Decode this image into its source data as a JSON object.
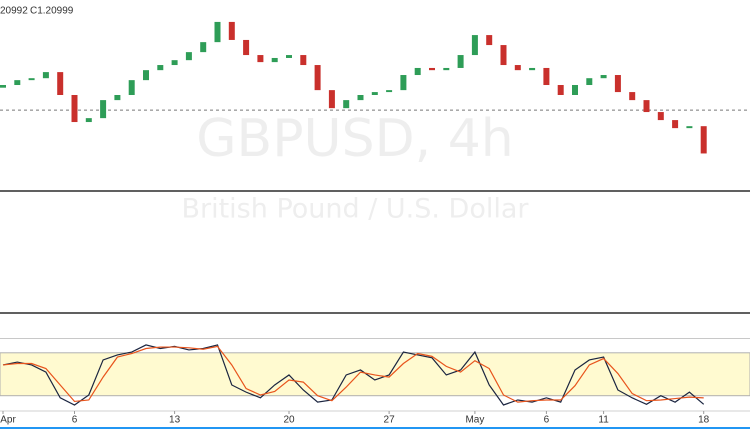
{
  "chart_data": [
    {
      "type": "candlestick",
      "legend_texts": [
        "20992",
        "C1.20999"
      ],
      "watermark_symbol": "GBPUSD, 4h",
      "watermark_name": "British Pound / U.S. Dollar",
      "categories": [
        "Apr",
        null,
        null,
        null,
        null,
        "6",
        null,
        null,
        null,
        null,
        null,
        null,
        "13",
        null,
        null,
        null,
        null,
        null,
        null,
        null,
        "20",
        null,
        null,
        null,
        null,
        null,
        null,
        "27",
        null,
        null,
        null,
        null,
        null,
        "May",
        null,
        null,
        null,
        null,
        "6",
        null,
        null,
        null,
        "11",
        null,
        null,
        null,
        null,
        null,
        null,
        "18"
      ],
      "open": [
        1.237,
        1.2381,
        1.2401,
        1.2409,
        1.2434,
        1.234,
        1.2229,
        1.2245,
        1.2319,
        1.234,
        1.2401,
        1.2442,
        1.2463,
        1.2483,
        1.2516,
        1.2557,
        1.264,
        1.2566,
        1.2504,
        1.2475,
        1.2492,
        1.2504,
        1.2463,
        1.236,
        1.2286,
        1.2319,
        1.234,
        1.2352,
        1.236,
        1.2422,
        1.2451,
        1.2442,
        1.2451,
        1.2504,
        1.2586,
        1.2545,
        1.2463,
        1.2442,
        1.2451,
        1.2381,
        1.234,
        1.2381,
        1.2409,
        1.2422,
        1.2352,
        1.2319,
        1.227,
        1.2237,
        1.2204,
        1.2212
      ],
      "close": [
        1.2381,
        1.2401,
        1.2409,
        1.2434,
        1.234,
        1.2229,
        1.2245,
        1.2319,
        1.234,
        1.2401,
        1.2442,
        1.2463,
        1.2483,
        1.2516,
        1.2557,
        1.264,
        1.2566,
        1.2504,
        1.2475,
        1.2492,
        1.2504,
        1.2463,
        1.236,
        1.2286,
        1.2319,
        1.234,
        1.2352,
        1.236,
        1.2422,
        1.2451,
        1.2442,
        1.2451,
        1.2504,
        1.2586,
        1.2545,
        1.2463,
        1.2442,
        1.2451,
        1.2381,
        1.234,
        1.2381,
        1.2409,
        1.2422,
        1.2352,
        1.2319,
        1.227,
        1.2237,
        1.2204,
        1.2212,
        1.21
      ],
      "up_color": "#2e9d57",
      "down_color": "#c9302c",
      "price_line": 1.2278,
      "ylim": [
        1.195,
        1.273
      ]
    },
    {
      "type": "stochastic",
      "series": [
        {
          "color": "#1b2540",
          "values": [
            63,
            67,
            63,
            53,
            17,
            7,
            21,
            70,
            77,
            81,
            91,
            86,
            89,
            84,
            86,
            91,
            35,
            25,
            17,
            35,
            49,
            28,
            11,
            14,
            49,
            56,
            42,
            49,
            81,
            77,
            73,
            49,
            56,
            81,
            35,
            7,
            14,
            11,
            17,
            11,
            56,
            70,
            74,
            28,
            17,
            8,
            20,
            11,
            25,
            8
          ]
        },
        {
          "color": "#e8541c",
          "values": [
            63,
            65,
            65,
            58,
            35,
            12,
            14,
            46,
            74,
            79,
            86,
            88,
            88,
            87,
            85,
            89,
            63,
            30,
            21,
            26,
            42,
            39,
            20,
            13,
            32,
            53,
            49,
            46,
            65,
            79,
            75,
            61,
            53,
            69,
            58,
            21,
            11,
            13,
            14,
            14,
            34,
            63,
            72,
            51,
            23,
            13,
            14,
            16,
            18,
            17
          ]
        }
      ],
      "bands": [
        20,
        80
      ],
      "band_color": "#fffad0",
      "ylim": [
        0,
        100
      ]
    }
  ]
}
